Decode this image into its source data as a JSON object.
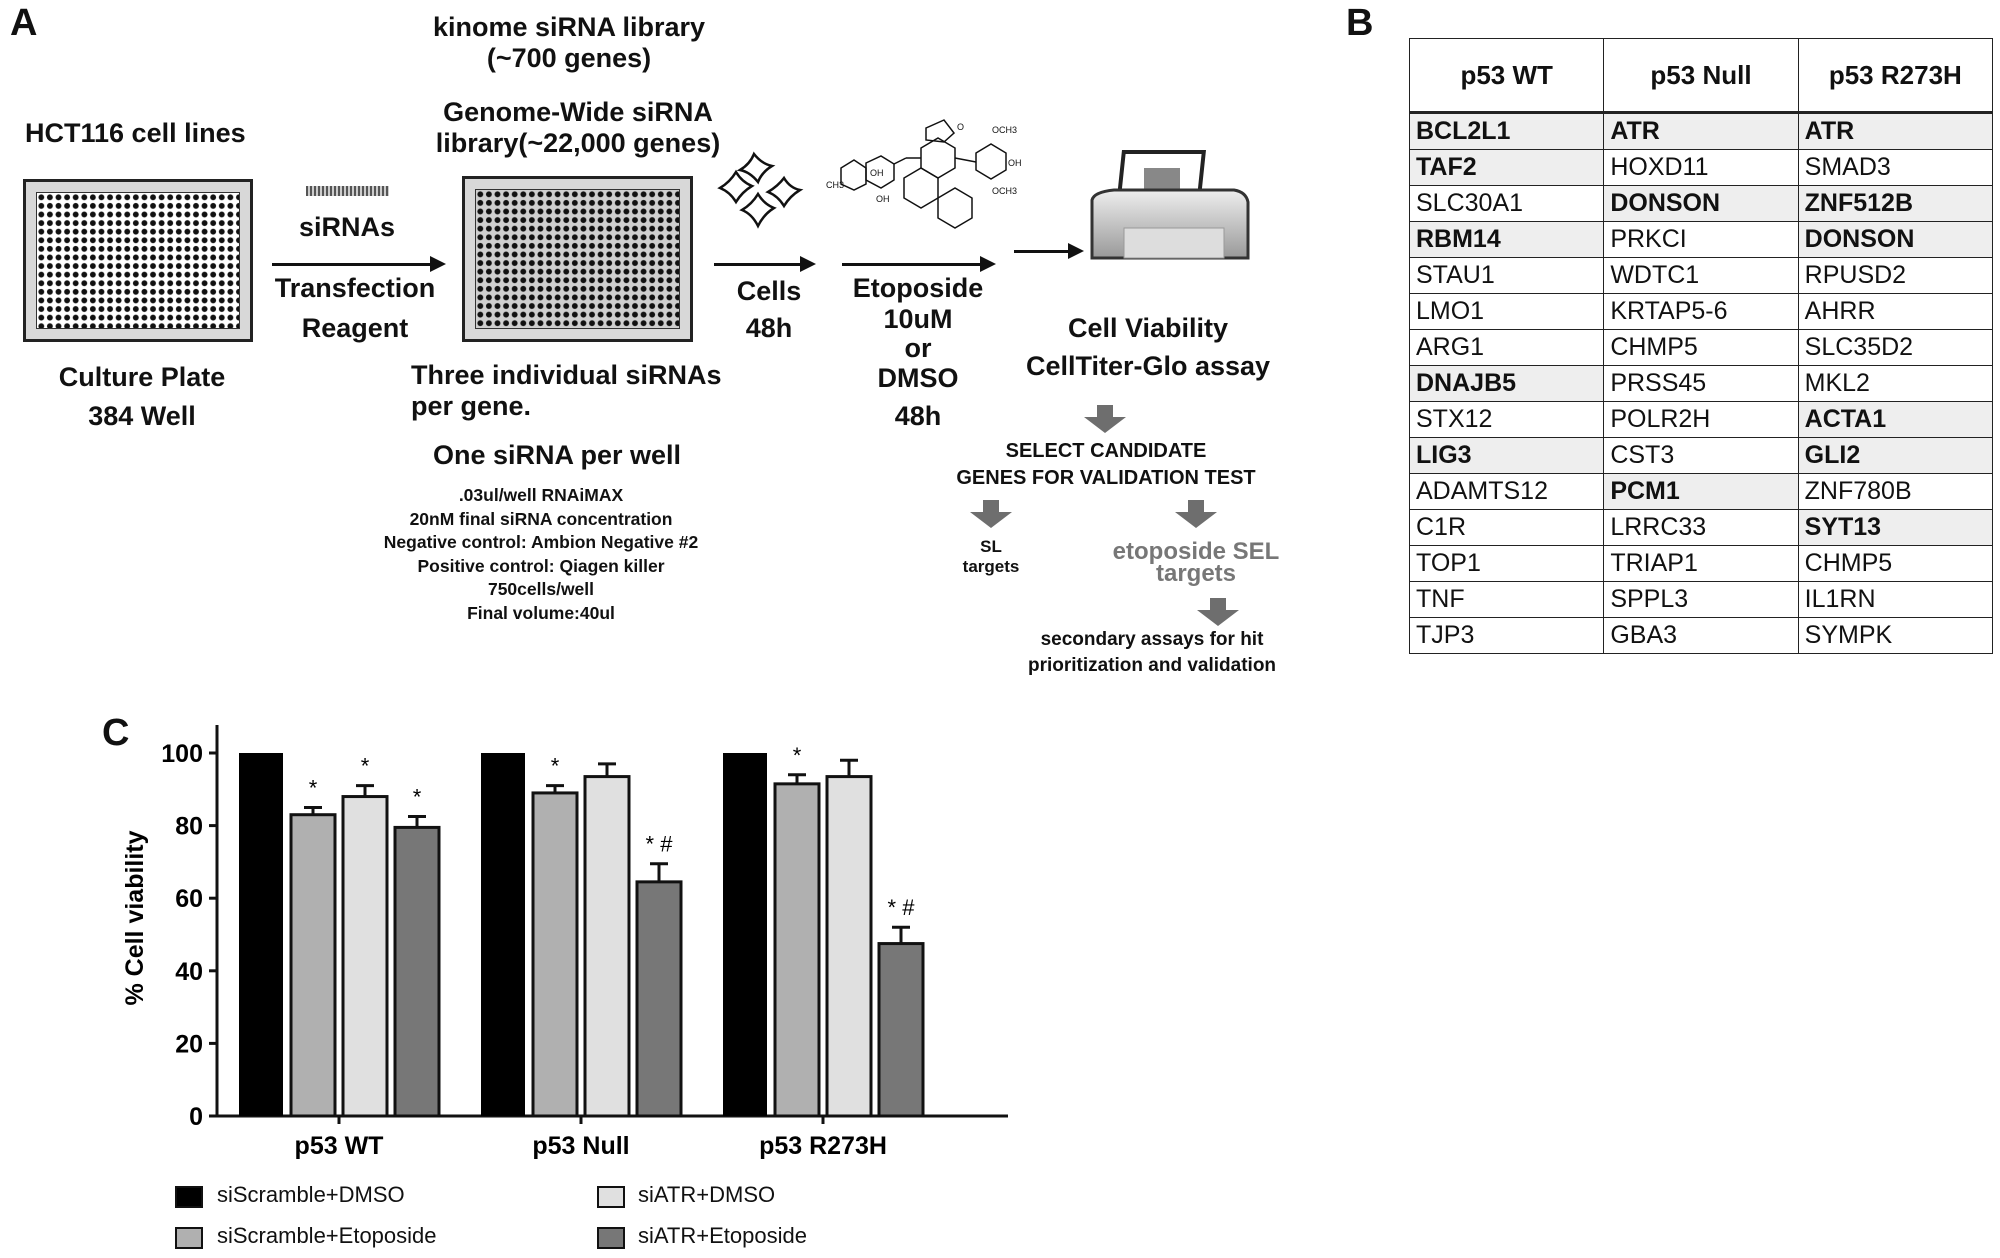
{
  "panel_a": {
    "letter": "A",
    "kinome_library": [
      "kinome siRNA library",
      "(~700 genes)"
    ],
    "genome_library": [
      "Genome-Wide siRNA",
      "library(~22,000 genes)"
    ],
    "cell_lines": "HCT116 cell lines",
    "plate_label": [
      "Culture Plate",
      "384 Well"
    ],
    "sirna_label": "siRNAs",
    "transfection": [
      "Transfection",
      "Reagent"
    ],
    "three_sirnas": [
      "Three individual siRNAs",
      "per gene."
    ],
    "one_per_well": "One siRNA per well",
    "conditions": [
      ".03ul/well RNAiMAX",
      "20nM final siRNA concentration",
      "Negative control: Ambion Negative #2",
      "Positive control: Qiagen killer",
      "750cells/well",
      "Final volume:40ul"
    ],
    "cells_step": [
      "Cells",
      "48h"
    ],
    "etoposide_step": [
      "Etoposide",
      "10uM",
      "or",
      "DMSO",
      "48h"
    ],
    "molecule_labels": [
      "OCH3",
      "OH",
      "OCH3",
      "CH3",
      "OH",
      "OH",
      "O"
    ],
    "viability": [
      "Cell Viability",
      "CellTiter-Glo assay"
    ],
    "select": [
      "SELECT CANDIDATE",
      "GENES FOR VALIDATION TEST"
    ],
    "sl_targets": [
      "SL",
      "targets"
    ],
    "sel_targets": [
      "etoposide SEL",
      "targets"
    ],
    "secondary": [
      "secondary assays for hit",
      "prioritization and validation"
    ],
    "arrow_color": "#6e6e6e",
    "sel_color": "#777777"
  },
  "panel_b": {
    "letter": "B",
    "headers": [
      "p53 WT",
      "p53 Null",
      "p53 R273H"
    ],
    "rows": [
      [
        {
          "g": "BCL2L1",
          "hit": true
        },
        {
          "g": "ATR",
          "hit": true
        },
        {
          "g": "ATR",
          "hit": true
        }
      ],
      [
        {
          "g": "TAF2",
          "hit": true
        },
        {
          "g": "HOXD11",
          "hit": false
        },
        {
          "g": "SMAD3",
          "hit": false
        }
      ],
      [
        {
          "g": "SLC30A1",
          "hit": false
        },
        {
          "g": "DONSON",
          "hit": true
        },
        {
          "g": "ZNF512B",
          "hit": true
        }
      ],
      [
        {
          "g": "RBM14",
          "hit": true
        },
        {
          "g": "PRKCI",
          "hit": false
        },
        {
          "g": "DONSON",
          "hit": true
        }
      ],
      [
        {
          "g": "STAU1",
          "hit": false
        },
        {
          "g": "WDTC1",
          "hit": false
        },
        {
          "g": "RPUSD2",
          "hit": false
        }
      ],
      [
        {
          "g": "LMO1",
          "hit": false
        },
        {
          "g": "KRTAP5-6",
          "hit": false
        },
        {
          "g": "AHRR",
          "hit": false
        }
      ],
      [
        {
          "g": "ARG1",
          "hit": false
        },
        {
          "g": "CHMP5",
          "hit": false
        },
        {
          "g": "SLC35D2",
          "hit": false
        }
      ],
      [
        {
          "g": "DNAJB5",
          "hit": true
        },
        {
          "g": "PRSS45",
          "hit": false
        },
        {
          "g": "MKL2",
          "hit": false
        }
      ],
      [
        {
          "g": "STX12",
          "hit": false
        },
        {
          "g": "POLR2H",
          "hit": false
        },
        {
          "g": "ACTA1",
          "hit": true
        }
      ],
      [
        {
          "g": "LIG3",
          "hit": true
        },
        {
          "g": "CST3",
          "hit": false
        },
        {
          "g": "GLI2",
          "hit": true
        }
      ],
      [
        {
          "g": "ADAMTS12",
          "hit": false
        },
        {
          "g": "PCM1",
          "hit": true
        },
        {
          "g": "ZNF780B",
          "hit": false
        }
      ],
      [
        {
          "g": "C1R",
          "hit": false
        },
        {
          "g": "LRRC33",
          "hit": false
        },
        {
          "g": "SYT13",
          "hit": true
        }
      ],
      [
        {
          "g": "TOP1",
          "hit": false
        },
        {
          "g": "TRIAP1",
          "hit": false
        },
        {
          "g": "CHMP5",
          "hit": false
        }
      ],
      [
        {
          "g": "TNF",
          "hit": false
        },
        {
          "g": "SPPL3",
          "hit": false
        },
        {
          "g": "IL1RN",
          "hit": false
        }
      ],
      [
        {
          "g": "TJP3",
          "hit": false
        },
        {
          "g": "GBA3",
          "hit": false
        },
        {
          "g": "SYMPK",
          "hit": false
        }
      ]
    ]
  },
  "panel_c": {
    "letter": "C"
  },
  "chart_data": {
    "type": "bar",
    "title": "",
    "xlabel": "",
    "ylabel": "% Cell viability",
    "ylim": [
      0,
      100
    ],
    "yticks": [
      0,
      20,
      40,
      60,
      80,
      100
    ],
    "grid": false,
    "legend_placement": "bottom",
    "categories": [
      "p53 WT",
      "p53 Null",
      "p53 R273H"
    ],
    "series": [
      {
        "name": "siScramble+DMSO",
        "color": "#000000",
        "values": [
          100,
          100,
          100
        ],
        "errors": [
          0,
          0,
          0
        ],
        "marks": [
          "",
          "",
          ""
        ]
      },
      {
        "name": "siScramble+Etoposide",
        "color": "#b0b0b0",
        "values": [
          83,
          89,
          91.5
        ],
        "errors": [
          2,
          2,
          2.5
        ],
        "marks": [
          "*",
          "*",
          "*"
        ]
      },
      {
        "name": "siATR+DMSO",
        "color": "#e0e0e0",
        "values": [
          88,
          93.5,
          93.5
        ],
        "errors": [
          3,
          3.5,
          4.5
        ],
        "marks": [
          "*",
          "",
          ""
        ]
      },
      {
        "name": "siATR+Etoposide",
        "color": "#777777",
        "values": [
          79.5,
          64.5,
          47.5
        ],
        "errors": [
          3,
          5,
          4.5
        ],
        "marks": [
          "*",
          "* #",
          "* #"
        ]
      }
    ]
  }
}
